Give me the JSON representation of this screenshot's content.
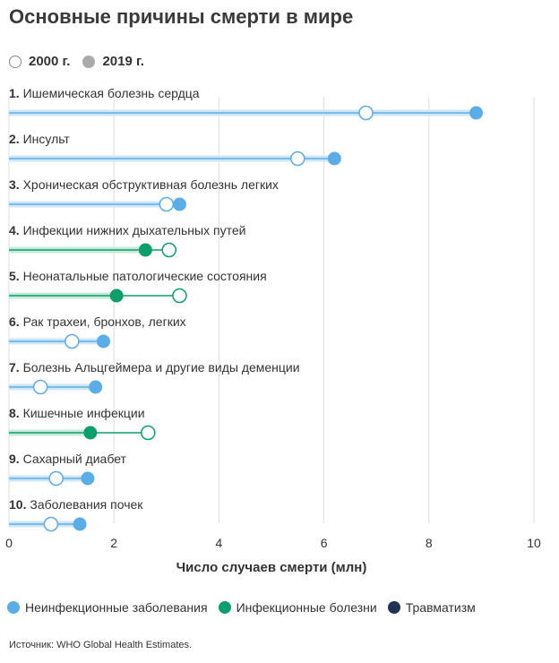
{
  "title": "Основные причины смерти в мире",
  "year_legend": {
    "open_label": "2000 г.",
    "filled_label": "2019 г."
  },
  "category_legend": [
    {
      "label": "Неинфекционные заболевания",
      "color": "#5aade6"
    },
    {
      "label": "Инфекционные болезни",
      "color": "#0b9f6c"
    },
    {
      "label": "Травматизм",
      "color": "#1f3355"
    }
  ],
  "source": "Источник: WHO Global Health Estimates.",
  "chart_data": {
    "type": "dumbbell",
    "xlabel": "Число случаев смерти (млн)",
    "xlim": [
      0,
      10
    ],
    "xticks": [
      "0",
      "2",
      "4",
      "6",
      "8",
      "10"
    ],
    "grid": true,
    "series": [
      {
        "name": "2000 г.",
        "values": [
          6.8,
          5.5,
          3.0,
          3.05,
          3.25,
          1.2,
          0.6,
          2.65,
          0.9,
          0.8
        ]
      },
      {
        "name": "2019 г.",
        "values": [
          8.9,
          6.2,
          3.25,
          2.6,
          2.05,
          1.8,
          1.65,
          1.55,
          1.5,
          1.35
        ]
      }
    ],
    "categories": [
      {
        "num": "1.",
        "name": "Ишемическая болезнь сердца",
        "group": "noncommunicable"
      },
      {
        "num": "2.",
        "name": "Инсульт",
        "group": "noncommunicable"
      },
      {
        "num": "3.",
        "name": "Хроническая обструктивная болезнь легких",
        "group": "noncommunicable"
      },
      {
        "num": "4.",
        "name": "Инфекции нижних дыхательных путей",
        "group": "communicable"
      },
      {
        "num": "5.",
        "name": "Неонатальные патологические состояния",
        "group": "communicable"
      },
      {
        "num": "6.",
        "name": "Рак трахеи, бронхов, легких",
        "group": "noncommunicable"
      },
      {
        "num": "7.",
        "name": "Болезнь Альцгеймера и другие виды деменции",
        "group": "noncommunicable"
      },
      {
        "num": "8.",
        "name": "Кишечные инфекции",
        "group": "communicable"
      },
      {
        "num": "9.",
        "name": "Сахарный диабет",
        "group": "noncommunicable"
      },
      {
        "num": "10.",
        "name": "Заболевания почек",
        "group": "noncommunicable"
      }
    ],
    "group_colors": {
      "noncommunicable": {
        "main": "#5aade6",
        "band": "#cfe6f7"
      },
      "communicable": {
        "main": "#0b9f6c",
        "band": "#c6ead9"
      }
    }
  }
}
